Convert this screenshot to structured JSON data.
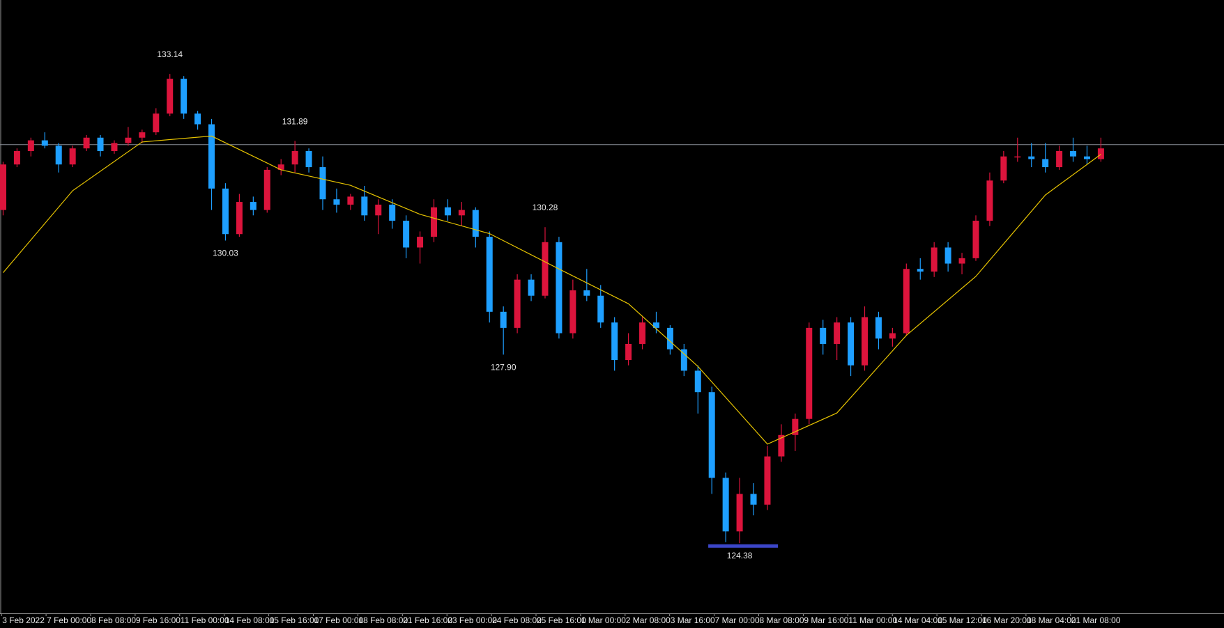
{
  "chart_data": {
    "type": "candlestick",
    "up_color": "#dc143c",
    "down_color": "#1e9fff",
    "ylim": [
      123.07,
      134.52
    ],
    "candles": {
      "open": [
        130.6,
        131.45,
        131.7,
        131.9,
        131.8,
        131.45,
        131.75,
        131.95,
        131.7,
        131.85,
        131.95,
        132.05,
        132.4,
        133.05,
        132.4,
        132.2,
        131.0,
        130.15,
        130.75,
        130.6,
        131.35,
        131.45,
        131.7,
        131.4,
        130.8,
        130.7,
        130.85,
        130.5,
        130.7,
        130.4,
        129.9,
        130.1,
        130.65,
        130.5,
        130.6,
        130.1,
        128.7,
        128.4,
        129.3,
        129.0,
        130.0,
        128.3,
        129.1,
        129.0,
        128.5,
        127.8,
        128.1,
        128.5,
        128.4,
        128.0,
        127.6,
        127.2,
        125.6,
        124.6,
        125.3,
        125.1,
        126.0,
        126.4,
        126.7,
        128.4,
        128.1,
        128.5,
        127.7,
        128.6,
        128.2,
        128.3,
        129.5,
        129.45,
        129.9,
        129.6,
        129.7,
        130.4,
        131.15,
        131.6,
        131.6,
        131.55,
        131.4,
        131.7,
        131.6,
        131.55
      ],
      "high": [
        131.5,
        131.75,
        131.95,
        132.05,
        131.85,
        131.8,
        132.0,
        132.0,
        131.9,
        132.15,
        132.1,
        132.5,
        133.14,
        133.1,
        132.45,
        132.3,
        131.1,
        130.9,
        130.85,
        131.4,
        131.55,
        131.89,
        131.75,
        131.6,
        131.0,
        130.9,
        131.05,
        130.8,
        130.8,
        130.5,
        130.2,
        130.8,
        130.8,
        130.75,
        130.65,
        130.2,
        128.8,
        129.4,
        129.4,
        130.28,
        130.1,
        129.3,
        129.5,
        129.2,
        128.6,
        128.3,
        128.6,
        128.7,
        128.45,
        128.1,
        127.7,
        127.3,
        125.7,
        125.6,
        125.5,
        126.2,
        126.6,
        126.8,
        128.5,
        128.55,
        128.6,
        128.6,
        128.8,
        128.7,
        128.4,
        129.6,
        129.7,
        130.0,
        130.0,
        129.8,
        130.5,
        131.3,
        131.7,
        131.95,
        131.85,
        131.85,
        131.8,
        131.95,
        131.8,
        131.95
      ],
      "low": [
        130.5,
        131.4,
        131.6,
        131.75,
        131.3,
        131.4,
        131.7,
        131.6,
        131.65,
        131.8,
        131.85,
        132.0,
        132.35,
        132.3,
        132.1,
        130.6,
        130.03,
        130.1,
        130.5,
        130.55,
        131.25,
        131.3,
        131.3,
        130.6,
        130.55,
        130.6,
        130.4,
        130.15,
        130.25,
        129.7,
        129.6,
        130.0,
        130.4,
        130.3,
        129.9,
        128.5,
        127.9,
        128.3,
        128.9,
        128.95,
        128.2,
        128.2,
        128.9,
        128.4,
        127.6,
        127.7,
        128.0,
        128.3,
        127.9,
        127.5,
        126.8,
        125.3,
        124.4,
        124.38,
        124.9,
        125.0,
        125.9,
        126.1,
        126.6,
        127.9,
        127.8,
        127.5,
        127.6,
        128.0,
        128.05,
        128.25,
        129.3,
        129.35,
        129.45,
        129.4,
        129.65,
        130.3,
        131.1,
        131.5,
        131.4,
        131.3,
        131.35,
        131.5,
        131.45,
        131.5
      ],
      "close": [
        131.45,
        131.7,
        131.9,
        131.8,
        131.45,
        131.75,
        131.95,
        131.7,
        131.85,
        131.95,
        132.05,
        132.4,
        133.05,
        132.4,
        132.2,
        131.0,
        130.15,
        130.75,
        130.6,
        131.35,
        131.45,
        131.7,
        131.4,
        130.8,
        130.7,
        130.85,
        130.5,
        130.7,
        130.4,
        129.9,
        130.1,
        130.65,
        130.5,
        130.6,
        130.1,
        128.7,
        128.4,
        129.3,
        129.0,
        130.0,
        128.3,
        129.1,
        129.0,
        128.5,
        127.8,
        128.1,
        128.5,
        128.4,
        128.0,
        127.6,
        127.2,
        125.6,
        124.6,
        125.3,
        125.1,
        126.0,
        126.4,
        126.7,
        128.4,
        128.1,
        128.5,
        127.7,
        128.6,
        128.2,
        128.3,
        129.5,
        129.45,
        129.9,
        129.6,
        129.7,
        130.4,
        131.15,
        131.6,
        131.6,
        131.55,
        131.4,
        131.7,
        131.6,
        131.55,
        131.75
      ]
    },
    "moving_average": {
      "color": "#e6c300",
      "x": [
        0,
        5,
        10,
        15,
        20,
        25,
        30,
        35,
        40,
        45,
        50,
        55,
        60,
        65,
        70,
        75,
        79
      ],
      "values": [
        129.43,
        130.96,
        131.87,
        131.98,
        131.35,
        131.06,
        130.52,
        130.16,
        129.5,
        128.85,
        127.68,
        126.23,
        126.81,
        128.26,
        129.36,
        130.88,
        131.64
      ]
    },
    "price_line": {
      "value": 131.82,
      "color": "#8a8f99"
    },
    "low_marker": {
      "value": 124.38,
      "color": "#3c46c8"
    },
    "annotations": [
      {
        "label": "133.14",
        "value": 133.14
      },
      {
        "label": "131.89",
        "value": 131.89
      },
      {
        "label": "130.03",
        "value": 130.03
      },
      {
        "label": "130.28",
        "value": 130.28
      },
      {
        "label": "127.90",
        "value": 127.9
      },
      {
        "label": "124.38",
        "value": 124.38
      }
    ],
    "x_labels": [
      "3 Feb 2022",
      "7 Feb 00:00",
      "8 Feb 08:00",
      "9 Feb 16:00",
      "11 Feb 00:00",
      "14 Feb 08:00",
      "15 Feb 16:00",
      "17 Feb 00:00",
      "18 Feb 08:00",
      "21 Feb 16:00",
      "23 Feb 00:00",
      "24 Feb 08:00",
      "25 Feb 16:00",
      "1 Mar 00:00",
      "2 Mar 08:00",
      "3 Mar 16:00",
      "7 Mar 00:00",
      "8 Mar 08:00",
      "9 Mar 16:00",
      "11 Mar 00:00",
      "14 Mar 04:00",
      "15 Mar 12:00",
      "16 Mar 20:00",
      "18 Mar 04:00",
      "21 Mar 08:00"
    ]
  }
}
